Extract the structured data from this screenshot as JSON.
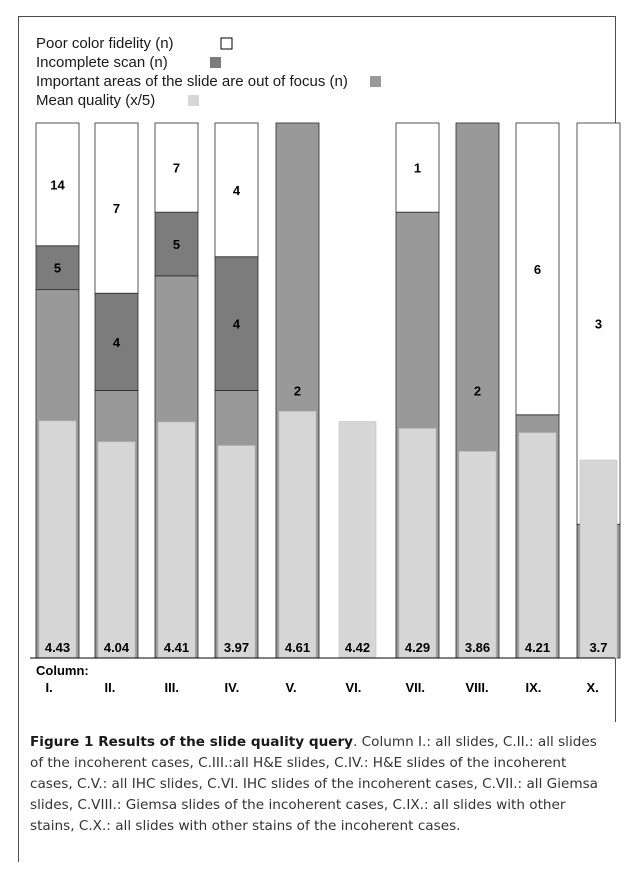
{
  "chart_data": {
    "type": "bar",
    "legend": [
      {
        "label": "Poor color fidelity  (n)",
        "color": "#ffffff"
      },
      {
        "label": "Incomplete scan  (n)",
        "color": "#7c7c7c"
      },
      {
        "label": "Important areas of the slide are out of focus (n)",
        "color": "#999999"
      },
      {
        "label": "Mean quality  (x/5)",
        "color": "#d6d6d6"
      }
    ],
    "axis_title": "Column:",
    "categories": [
      "I.",
      "II.",
      "III.",
      "IV.",
      "V.",
      "VI.",
      "VII.",
      "VIII.",
      "IX.",
      "X."
    ],
    "series": [
      {
        "name": "Important areas of the slide are out of focus (n)",
        "values": [
          42,
          11,
          30,
          8,
          2,
          0,
          5,
          2,
          5,
          1
        ],
        "value_labels": [
          "42",
          "11",
          "30",
          "8",
          "2",
          "",
          "5",
          "2",
          "5",
          "1"
        ]
      },
      {
        "name": "Incomplete scan (n)",
        "values": [
          5,
          4,
          5,
          4,
          0,
          0,
          0,
          0,
          0,
          0
        ],
        "value_labels": [
          "5",
          "4",
          "5",
          "4",
          "",
          "",
          "",
          "",
          "",
          ""
        ]
      },
      {
        "name": "Poor color fidelity (n)",
        "values": [
          14,
          7,
          7,
          4,
          0,
          0,
          1,
          0,
          6,
          3
        ],
        "value_labels": [
          "14",
          "7",
          "7",
          "4",
          "",
          "",
          "1",
          "",
          "6",
          "3"
        ]
      }
    ],
    "mean_quality": {
      "name": "Mean quality (x/5)",
      "values": [
        4.43,
        4.04,
        4.41,
        3.97,
        4.61,
        4.42,
        4.29,
        3.86,
        4.21,
        3.7
      ],
      "labels": [
        "4.43",
        "4.04",
        "4.41",
        "3.97",
        "4.61",
        "4.42",
        "4.29",
        "3.86",
        "4.21",
        "3.7"
      ]
    },
    "stacks_normalized_to_100_percent": true,
    "grid": false
  },
  "caption": {
    "title": "Figure 1 Results of the slide quality query",
    "body": ". Column I.: all slides, C.II.: all slides of the incoherent cases, C.III.:all H&E slides, C.IV.: H&E slides of the incoherent cases, C.V.: all IHC slides, C.VI. IHC slides of the incoherent cases, C.VII.: all Giemsa slides, C.VIII.: Giemsa slides of the incoherent cases, C.IX.: all slides with other stains, C.X.: all slides with other stains of the incoherent cases."
  }
}
